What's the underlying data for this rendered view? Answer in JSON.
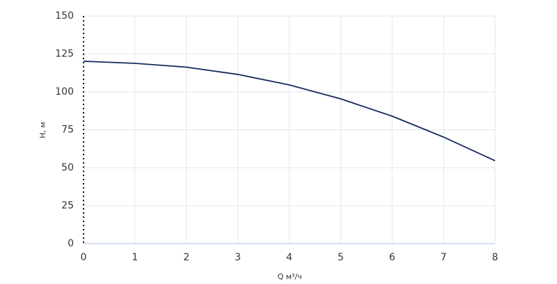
{
  "chart_data": {
    "type": "line",
    "x_label": "Q м³/ч",
    "y_label": "H, м",
    "x": [
      0,
      1,
      2,
      3,
      4,
      5,
      6,
      7,
      8
    ],
    "series": [
      {
        "color": "#132a5e",
        "values": [
          120.2,
          118.8,
          116.3,
          111.5,
          104.6,
          95.4,
          84,
          70.2,
          54.6
        ]
      }
    ],
    "xlim": [
      0,
      8
    ],
    "xticks": [
      0,
      1,
      2,
      3,
      4,
      5,
      6,
      7,
      8
    ],
    "ylim": [
      0,
      150
    ],
    "yticks": [
      0,
      25,
      50,
      75,
      100,
      125,
      150
    ],
    "grid": true
  }
}
